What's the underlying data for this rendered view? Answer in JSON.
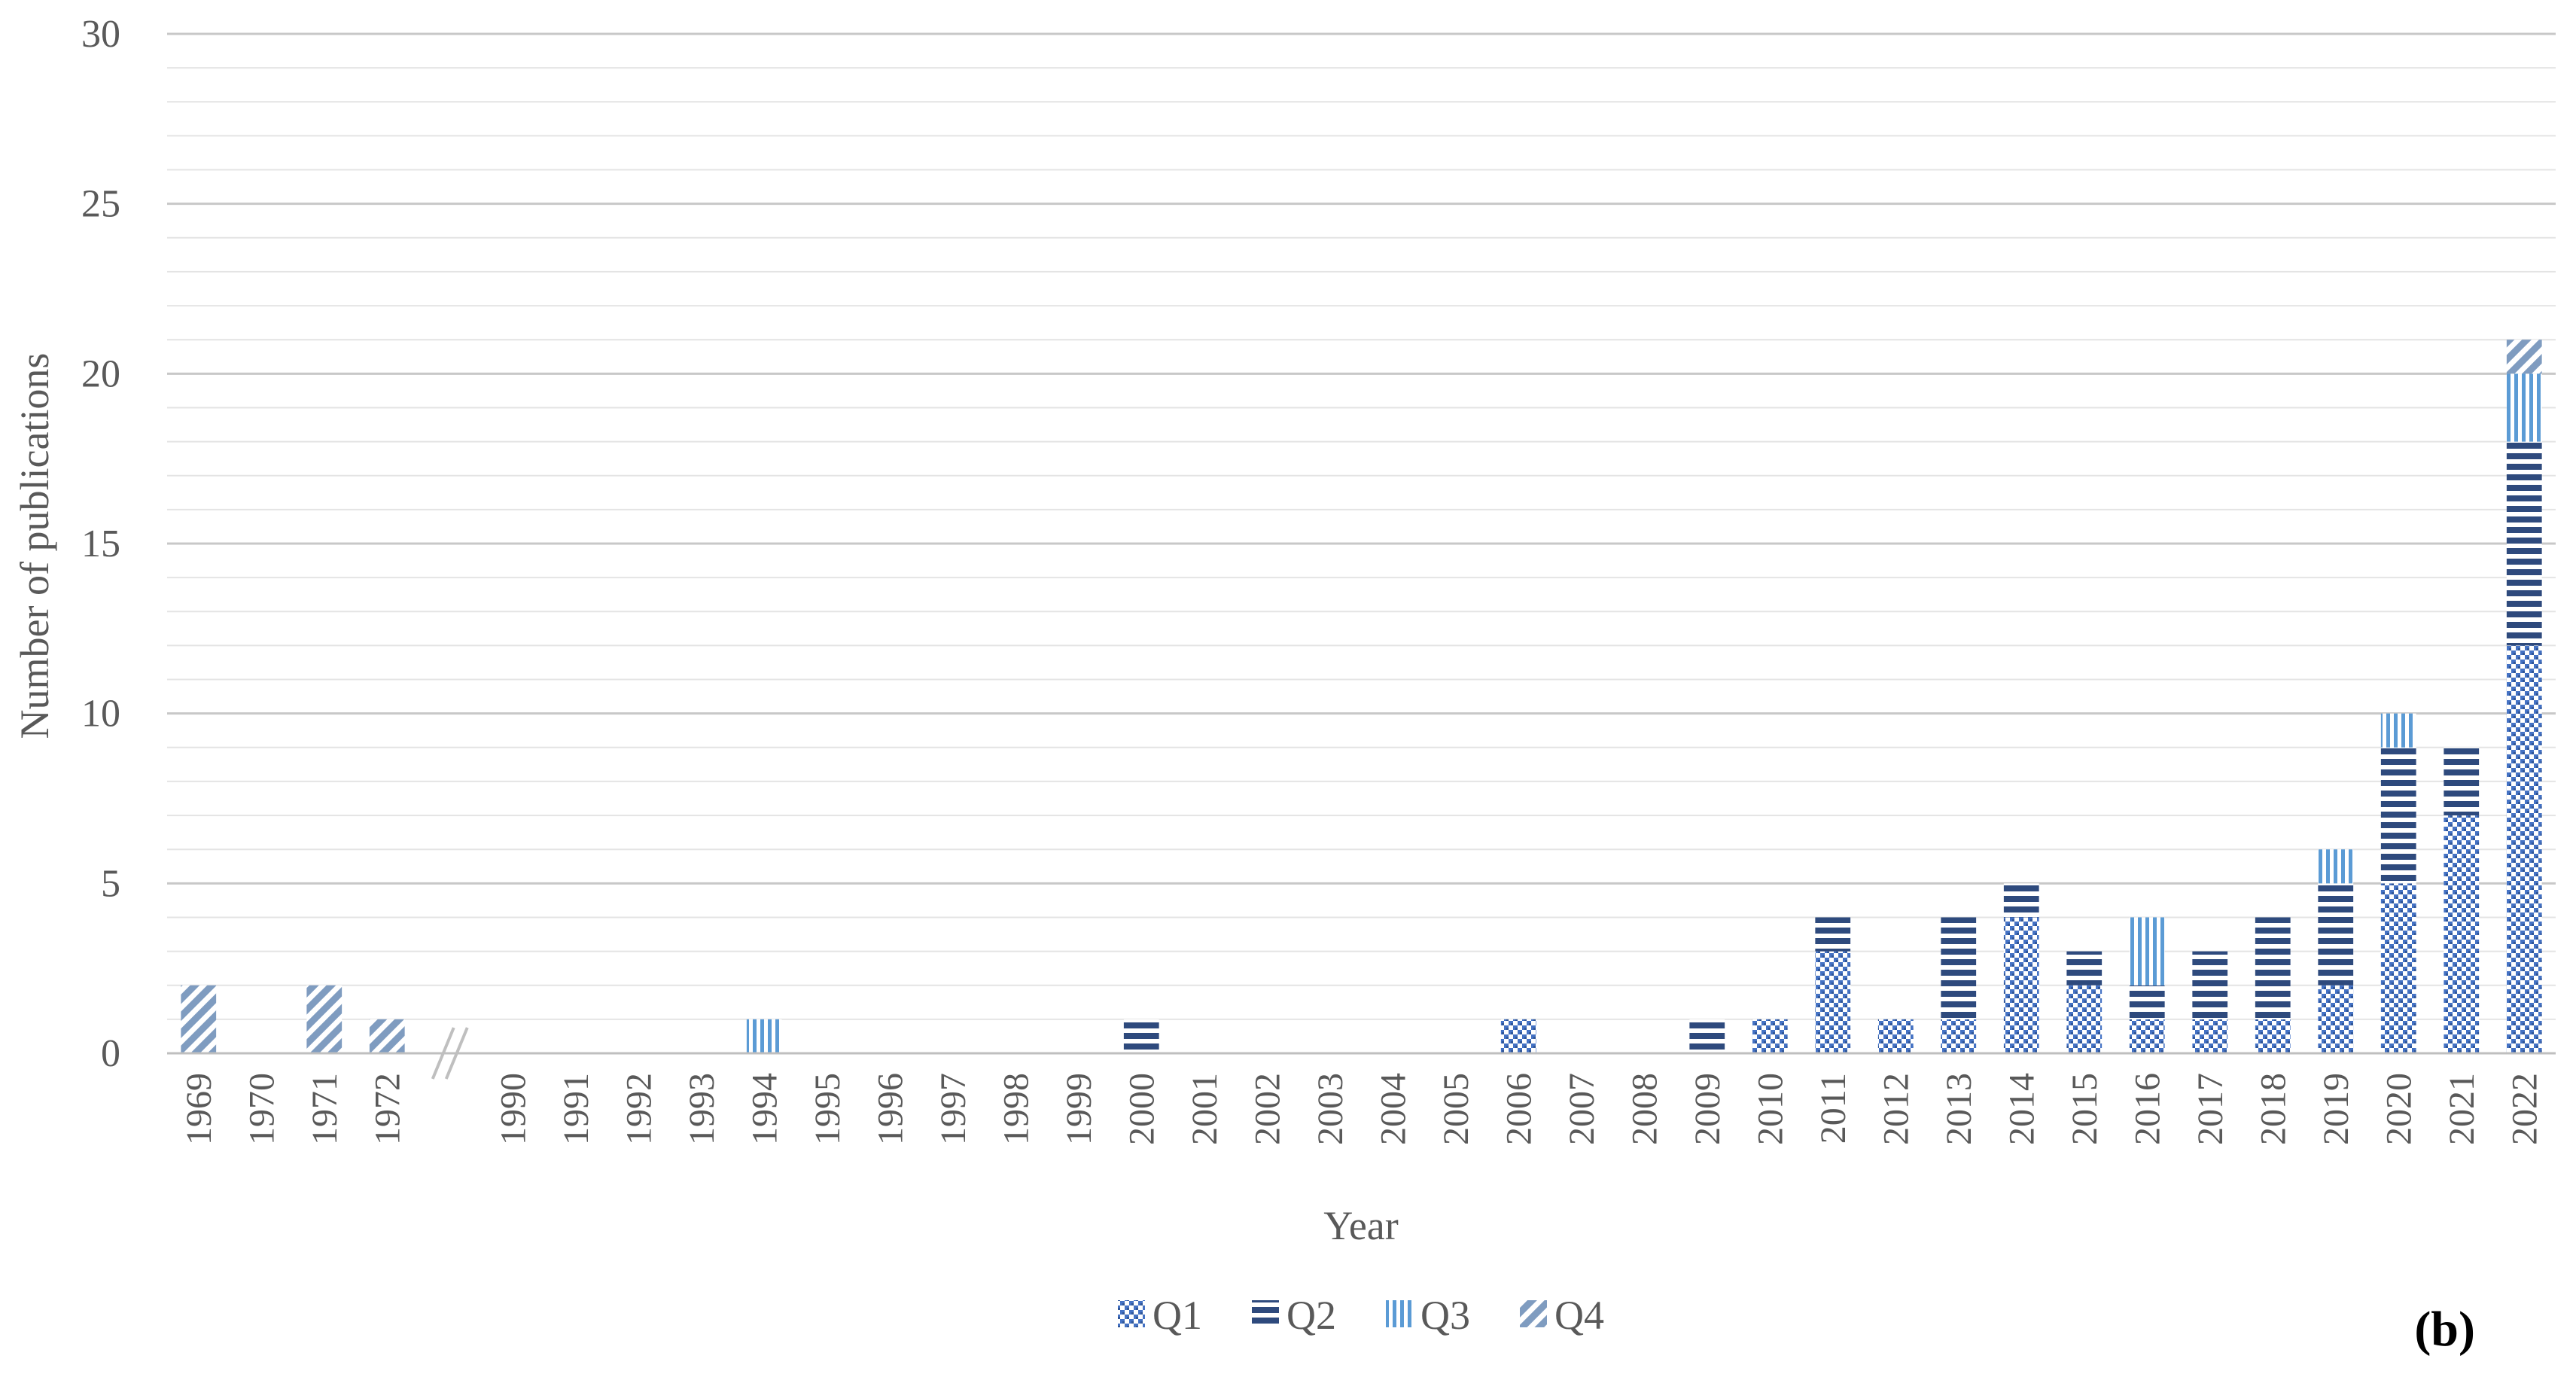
{
  "chart_data": {
    "type": "bar",
    "stacked": true,
    "categories": [
      "1969",
      "1970",
      "1971",
      "1972",
      "1990",
      "1991",
      "1992",
      "1993",
      "1994",
      "1995",
      "1996",
      "1997",
      "1998",
      "1999",
      "2000",
      "2001",
      "2002",
      "2003",
      "2004",
      "2005",
      "2006",
      "2007",
      "2008",
      "2009",
      "2010",
      "2011",
      "2012",
      "2013",
      "2014",
      "2015",
      "2016",
      "2017",
      "2018",
      "2019",
      "2020",
      "2021",
      "2022"
    ],
    "series": [
      {
        "name": "Q1",
        "color": "#4472C4",
        "pattern": "checker",
        "values": [
          0,
          0,
          0,
          0,
          0,
          0,
          0,
          0,
          0,
          0,
          0,
          0,
          0,
          0,
          0,
          0,
          0,
          0,
          0,
          0,
          1,
          0,
          0,
          0,
          1,
          3,
          1,
          1,
          4,
          2,
          1,
          1,
          1,
          2,
          5,
          7,
          12
        ]
      },
      {
        "name": "Q2",
        "color": "#2E4A7D",
        "pattern": "horizontal-stripes",
        "values": [
          0,
          0,
          0,
          0,
          0,
          0,
          0,
          0,
          0,
          0,
          0,
          0,
          0,
          0,
          1,
          0,
          0,
          0,
          0,
          0,
          0,
          0,
          0,
          1,
          0,
          1,
          0,
          3,
          1,
          1,
          1,
          2,
          3,
          3,
          4,
          2,
          6
        ]
      },
      {
        "name": "Q3",
        "color": "#5B9BD5",
        "pattern": "vertical-stripes",
        "values": [
          0,
          0,
          0,
          0,
          0,
          0,
          0,
          0,
          1,
          0,
          0,
          0,
          0,
          0,
          0,
          0,
          0,
          0,
          0,
          0,
          0,
          0,
          0,
          0,
          0,
          0,
          0,
          0,
          0,
          0,
          2,
          0,
          0,
          1,
          1,
          0,
          2
        ]
      },
      {
        "name": "Q4",
        "color": "#7F9CC0",
        "pattern": "diagonal-stripes",
        "values": [
          2,
          0,
          2,
          1,
          0,
          0,
          0,
          0,
          0,
          0,
          0,
          0,
          0,
          0,
          0,
          0,
          0,
          0,
          0,
          0,
          0,
          0,
          0,
          0,
          0,
          0,
          0,
          0,
          0,
          0,
          0,
          0,
          0,
          0,
          0,
          0,
          1
        ]
      }
    ],
    "axis_break_after": "1972",
    "xlabel": "Year",
    "ylabel": "Number of publications",
    "ylim": [
      0,
      30
    ],
    "yticks": [
      0,
      5,
      10,
      15,
      20,
      25,
      30
    ],
    "grid": true,
    "minor_grid": true,
    "legend_position": "bottom-center",
    "panel_label": "(b)"
  }
}
